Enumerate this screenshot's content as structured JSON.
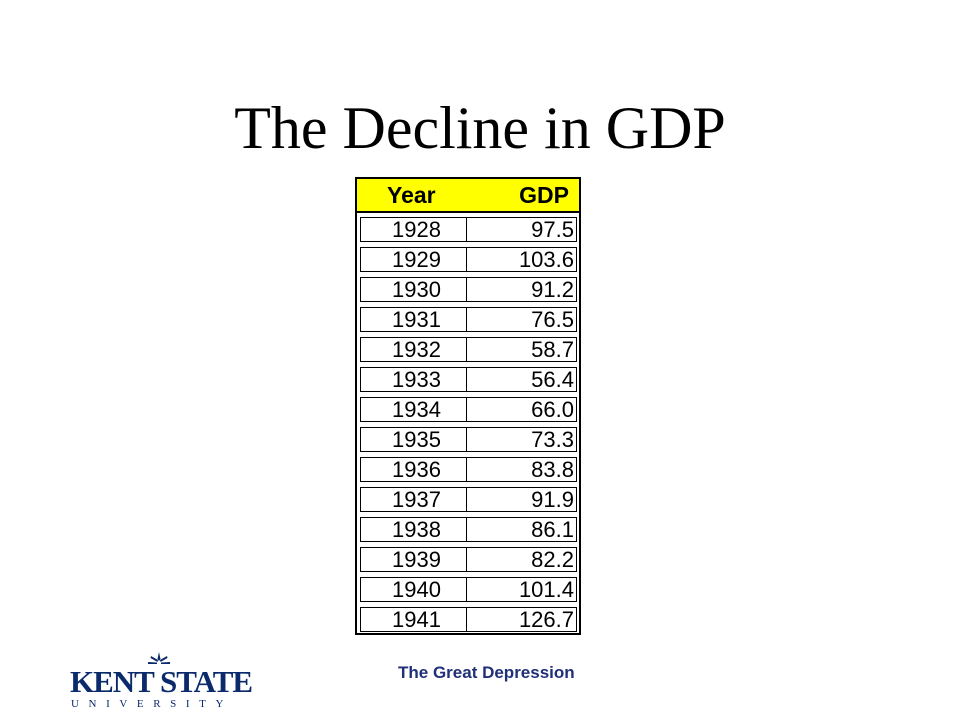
{
  "slide": {
    "title": "The Decline in GDP"
  },
  "table": {
    "headers": {
      "year": "Year",
      "gdp": "GDP"
    },
    "rows": [
      {
        "year": "1928",
        "gdp": "97.5"
      },
      {
        "year": "1929",
        "gdp": "103.6"
      },
      {
        "year": "1930",
        "gdp": "91.2"
      },
      {
        "year": "1931",
        "gdp": "76.5"
      },
      {
        "year": "1932",
        "gdp": "58.7"
      },
      {
        "year": "1933",
        "gdp": "56.4"
      },
      {
        "year": "1934",
        "gdp": "66.0"
      },
      {
        "year": "1935",
        "gdp": "73.3"
      },
      {
        "year": "1936",
        "gdp": "83.8"
      },
      {
        "year": "1937",
        "gdp": "91.9"
      },
      {
        "year": "1938",
        "gdp": "86.1"
      },
      {
        "year": "1939",
        "gdp": "82.2"
      },
      {
        "year": "1940",
        "gdp": "101.4"
      },
      {
        "year": "1941",
        "gdp": "126.7"
      }
    ],
    "header_color": "#ffff00"
  },
  "footer": {
    "text": "The Great Depression",
    "color": "#1f2f78"
  },
  "logo": {
    "name": "KENT STATE",
    "sub": "UNIVERSITY",
    "icon": "kent-state-logo-mark",
    "color": "#0b2a6b"
  }
}
